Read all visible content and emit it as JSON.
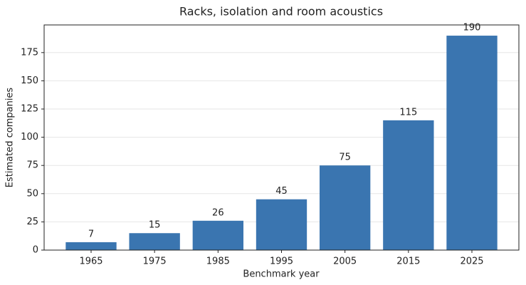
{
  "chart_data": {
    "type": "bar",
    "title": "Racks, isolation and room acoustics",
    "x_label": "Benchmark year",
    "y_label": "Estimated companies",
    "categories": [
      "1965",
      "1975",
      "1985",
      "1995",
      "2005",
      "2015",
      "2025"
    ],
    "values": [
      7,
      15,
      26,
      45,
      75,
      115,
      190
    ],
    "color": "#3a75b0",
    "ylim": [
      0,
      199.5
    ],
    "yticks": [
      0,
      25,
      50,
      75,
      100,
      125,
      150,
      175
    ],
    "grid": true
  }
}
